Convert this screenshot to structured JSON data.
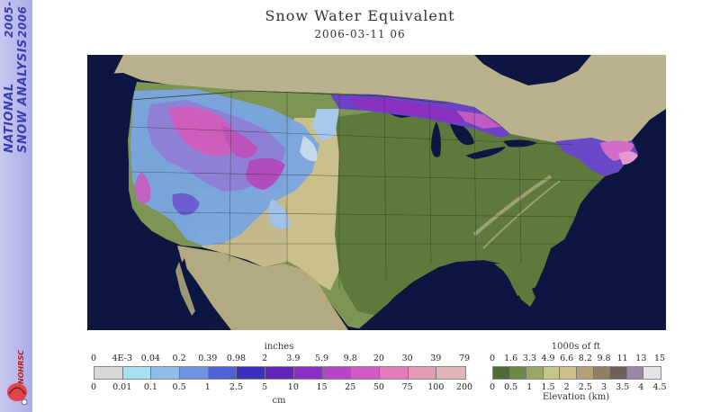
{
  "sidebar": {
    "years_line1": "2005-",
    "years_line2": "2006",
    "title_line1": "NATIONAL",
    "title_line2": "SNOW ANALYSIS",
    "logo_text": "NOHRSC"
  },
  "map": {
    "title": "Snow Water Equivalent",
    "timestamp": "2006-03-11 06"
  },
  "swe_legend": {
    "top_unit": "inches",
    "bottom_unit": "cm",
    "inch_ticks": [
      "0",
      "4E-3",
      "0.04",
      "0.2",
      "0.39",
      "0.98",
      "2",
      "3.9",
      "5.9",
      "9.8",
      "20",
      "30",
      "39",
      "79"
    ],
    "cm_ticks": [
      "0",
      "0.01",
      "0.1",
      "0.5",
      "1",
      "2.5",
      "5",
      "10",
      "15",
      "25",
      "50",
      "75",
      "100",
      "200"
    ],
    "colors": [
      "#d8d8dc",
      "#a6dff0",
      "#8fbce9",
      "#6f93e0",
      "#4e62d6",
      "#3c2fc0",
      "#6325b8",
      "#8a2ec6",
      "#b545c6",
      "#d459c4",
      "#e27bb9",
      "#e599b6",
      "#dfb5b7"
    ]
  },
  "elev_legend": {
    "top_unit": "1000s of ft",
    "bottom_unit": "Elevation (km)",
    "ft_ticks": [
      "0",
      "1.6",
      "3.3",
      "4.9",
      "6.6",
      "8.2",
      "9.8",
      "11",
      "13",
      "15"
    ],
    "km_ticks": [
      "0",
      "0.5",
      "1",
      "1.5",
      "2",
      "2.5",
      "3",
      "3.5",
      "4",
      "4.5"
    ],
    "colors": [
      "#4d6b34",
      "#6b8a44",
      "#9aa765",
      "#c4c58a",
      "#cdbf87",
      "#b3a074",
      "#8f7f63",
      "#6f5e59",
      "#9d85a6",
      "#e6e0ea"
    ]
  }
}
